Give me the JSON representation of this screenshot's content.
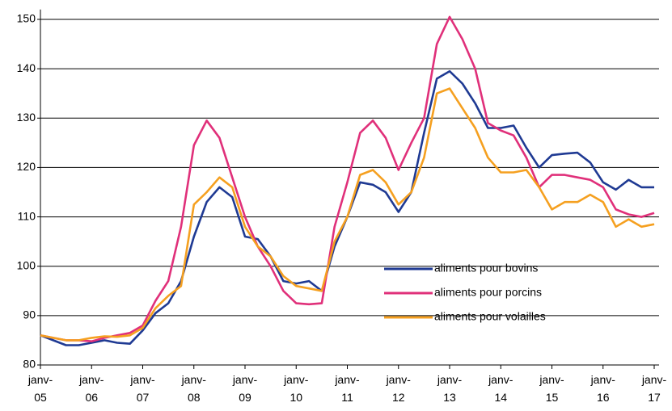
{
  "chart_data": {
    "type": "line",
    "categories": [
      "janv-05",
      null,
      null,
      null,
      "janv-06",
      null,
      null,
      null,
      "janv-07",
      null,
      null,
      null,
      "janv-08",
      null,
      null,
      null,
      "janv-09",
      null,
      null,
      null,
      "janv-10",
      null,
      null,
      null,
      "janv-11",
      null,
      null,
      null,
      "janv-12",
      null,
      null,
      null,
      "janv-13",
      null,
      null,
      null,
      "janv-14",
      null,
      null,
      null,
      "janv-15",
      null,
      null,
      null,
      "janv-16",
      null,
      null,
      null,
      "janv-17"
    ],
    "series": [
      {
        "name": "aliments pour bovins",
        "color": "#1f3a93",
        "values": [
          86,
          85,
          84,
          84,
          84.5,
          85,
          84.5,
          84.3,
          87,
          90.5,
          92.5,
          97,
          106,
          113,
          116,
          114,
          106,
          105.5,
          102,
          97,
          96.5,
          97,
          95,
          104,
          110,
          117,
          116.5,
          115,
          111,
          115,
          127,
          138,
          139.5,
          137,
          133,
          128,
          128,
          128.5,
          124,
          120,
          122.5,
          122.8,
          123,
          121,
          117,
          115.5,
          117.5,
          116,
          116
        ]
      },
      {
        "name": "aliments pour porcins",
        "color": "#e0307a",
        "values": [
          86,
          85.5,
          85,
          85,
          84.8,
          85.5,
          86,
          86.5,
          88,
          93,
          97,
          108,
          124.5,
          129.5,
          126,
          118,
          110,
          104,
          100,
          95,
          92.5,
          92.3,
          92.5,
          108,
          117,
          127,
          129.5,
          126,
          119.5,
          125,
          130,
          145,
          150.5,
          146,
          140,
          129,
          127.5,
          126.5,
          122,
          116,
          118.5,
          118.5,
          118,
          117.5,
          116,
          111.5,
          110.5,
          110,
          110.8
        ]
      },
      {
        "name": "aliments pour volailles",
        "color": "#f5a020",
        "values": [
          86,
          85.5,
          85,
          85,
          85.5,
          85.8,
          85.7,
          86,
          87.5,
          91.5,
          94,
          96,
          112.5,
          115,
          118,
          116,
          108,
          104,
          102,
          98,
          96,
          95.5,
          95,
          105,
          110,
          118.5,
          119.5,
          117,
          112.5,
          115,
          122,
          135,
          136,
          132,
          128,
          122,
          119,
          119,
          119.5,
          116,
          111.5,
          113,
          113,
          114.5,
          113,
          108,
          109.5,
          108,
          108.5
        ]
      }
    ],
    "ylim": [
      80,
      152
    ],
    "yticks": [
      80,
      90,
      100,
      110,
      120,
      130,
      140,
      150
    ],
    "grid": true,
    "legend": "inside-right"
  }
}
